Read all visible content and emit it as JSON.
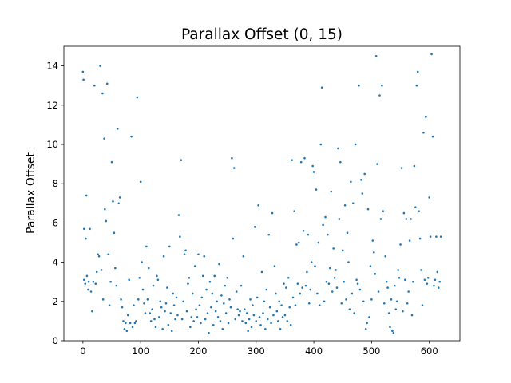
{
  "chart_data": {
    "type": "scatter",
    "title": "Parallax Offset (0, 15)",
    "xlabel": "",
    "ylabel": "Parallax Offset",
    "xlim": [
      -33,
      653
    ],
    "ylim": [
      0,
      15
    ],
    "xticks": [
      0,
      100,
      200,
      300,
      400,
      500,
      600
    ],
    "yticks": [
      0,
      2,
      4,
      6,
      8,
      10,
      12,
      14
    ],
    "grid": false,
    "legend": "none",
    "marker_color": "#1f77b4",
    "series": [
      {
        "points": [
          [
            0,
            13.7
          ],
          [
            1,
            13.3
          ],
          [
            2,
            5.7
          ],
          [
            2,
            3.1
          ],
          [
            4,
            2.9
          ],
          [
            5,
            5.2
          ],
          [
            6,
            7.4
          ],
          [
            7,
            3.3
          ],
          [
            9,
            2.6
          ],
          [
            10,
            3.0
          ],
          [
            12,
            5.7
          ],
          [
            14,
            2.5
          ],
          [
            16,
            1.5
          ],
          [
            18,
            3.0
          ],
          [
            20,
            13.0
          ],
          [
            22,
            2.9
          ],
          [
            24,
            3.5
          ],
          [
            26,
            4.4
          ],
          [
            28,
            4.3
          ],
          [
            30,
            14.0
          ],
          [
            32,
            3.6
          ],
          [
            34,
            12.6
          ],
          [
            35,
            2.1
          ],
          [
            37,
            10.3
          ],
          [
            38,
            6.7
          ],
          [
            40,
            6.1
          ],
          [
            42,
            13.1
          ],
          [
            44,
            4.4
          ],
          [
            46,
            1.8
          ],
          [
            48,
            3.0
          ],
          [
            50,
            9.1
          ],
          [
            52,
            7.1
          ],
          [
            54,
            5.5
          ],
          [
            56,
            3.7
          ],
          [
            58,
            2.8
          ],
          [
            60,
            10.8
          ],
          [
            62,
            7.0
          ],
          [
            64,
            7.3
          ],
          [
            66,
            2.1
          ],
          [
            68,
            1.7
          ],
          [
            70,
            1.0
          ],
          [
            72,
            0.6
          ],
          [
            74,
            0.9
          ],
          [
            76,
            0.5
          ],
          [
            78,
            1.3
          ],
          [
            80,
            3.1
          ],
          [
            82,
            0.9
          ],
          [
            84,
            10.4
          ],
          [
            86,
            0.7
          ],
          [
            88,
            1.8
          ],
          [
            90,
            0.9
          ],
          [
            92,
            1.0
          ],
          [
            94,
            12.4
          ],
          [
            96,
            2.1
          ],
          [
            98,
            3.2
          ],
          [
            100,
            8.1
          ],
          [
            102,
            4.0
          ],
          [
            104,
            2.6
          ],
          [
            106,
            1.9
          ],
          [
            108,
            1.4
          ],
          [
            110,
            4.8
          ],
          [
            112,
            2.1
          ],
          [
            114,
            3.7
          ],
          [
            116,
            1.4
          ],
          [
            118,
            1.0
          ],
          [
            120,
            1.6
          ],
          [
            122,
            2.8
          ],
          [
            124,
            1.1
          ],
          [
            126,
            0.7
          ],
          [
            128,
            3.3
          ],
          [
            130,
            3.1
          ],
          [
            132,
            1.2
          ],
          [
            134,
            2.0
          ],
          [
            136,
            1.7
          ],
          [
            138,
            0.6
          ],
          [
            140,
            4.3
          ],
          [
            142,
            1.5
          ],
          [
            144,
            1.9
          ],
          [
            146,
            2.7
          ],
          [
            148,
            0.8
          ],
          [
            150,
            4.8
          ],
          [
            152,
            1.4
          ],
          [
            154,
            0.5
          ],
          [
            156,
            2.4
          ],
          [
            158,
            1.8
          ],
          [
            160,
            1.1
          ],
          [
            162,
            2.2
          ],
          [
            164,
            1.3
          ],
          [
            166,
            6.4
          ],
          [
            168,
            5.3
          ],
          [
            170,
            9.2
          ],
          [
            172,
            1.1
          ],
          [
            174,
            2.0
          ],
          [
            176,
            4.4
          ],
          [
            178,
            4.6
          ],
          [
            180,
            1.5
          ],
          [
            182,
            2.9
          ],
          [
            184,
            3.2
          ],
          [
            186,
            0.7
          ],
          [
            188,
            1.2
          ],
          [
            190,
            2.4
          ],
          [
            192,
            1.0
          ],
          [
            194,
            3.8
          ],
          [
            196,
            1.6
          ],
          [
            198,
            1.2
          ],
          [
            200,
            4.4
          ],
          [
            202,
            1.8
          ],
          [
            204,
            0.9
          ],
          [
            206,
            2.2
          ],
          [
            208,
            3.3
          ],
          [
            210,
            4.3
          ],
          [
            212,
            1.1
          ],
          [
            214,
            2.6
          ],
          [
            216,
            1.4
          ],
          [
            218,
            0.4
          ],
          [
            220,
            3.0
          ],
          [
            222,
            1.7
          ],
          [
            224,
            2.4
          ],
          [
            226,
            0.8
          ],
          [
            228,
            3.3
          ],
          [
            230,
            1.5
          ],
          [
            232,
            2.0
          ],
          [
            234,
            1.2
          ],
          [
            236,
            3.9
          ],
          [
            238,
            1.0
          ],
          [
            240,
            2.3
          ],
          [
            242,
            0.6
          ],
          [
            244,
            1.9
          ],
          [
            246,
            2.8
          ],
          [
            248,
            1.4
          ],
          [
            250,
            3.2
          ],
          [
            252,
            0.9
          ],
          [
            254,
            2.1
          ],
          [
            256,
            1.7
          ],
          [
            258,
            9.3
          ],
          [
            260,
            5.2
          ],
          [
            262,
            8.8
          ],
          [
            264,
            1.1
          ],
          [
            266,
            2.5
          ],
          [
            268,
            1.6
          ],
          [
            270,
            1.3
          ],
          [
            272,
            1.5
          ],
          [
            274,
            2.8
          ],
          [
            276,
            1.0
          ],
          [
            278,
            4.3
          ],
          [
            280,
            1.6
          ],
          [
            282,
            0.9
          ],
          [
            284,
            1.4
          ],
          [
            286,
            0.5
          ],
          [
            288,
            1.1
          ],
          [
            290,
            2.1
          ],
          [
            292,
            0.7
          ],
          [
            294,
            1.8
          ],
          [
            296,
            1.3
          ],
          [
            298,
            5.8
          ],
          [
            300,
            1.0
          ],
          [
            302,
            2.2
          ],
          [
            304,
            6.9
          ],
          [
            306,
            1.2
          ],
          [
            308,
            0.8
          ],
          [
            310,
            3.5
          ],
          [
            312,
            1.4
          ],
          [
            314,
            2.0
          ],
          [
            316,
            0.6
          ],
          [
            318,
            2.6
          ],
          [
            320,
            1.1
          ],
          [
            322,
            5.4
          ],
          [
            324,
            1.7
          ],
          [
            326,
            0.9
          ],
          [
            328,
            6.5
          ],
          [
            330,
            1.3
          ],
          [
            332,
            3.8
          ],
          [
            334,
            2.4
          ],
          [
            336,
            1.5
          ],
          [
            338,
            1.0
          ],
          [
            340,
            2.0
          ],
          [
            342,
            0.6
          ],
          [
            344,
            1.8
          ],
          [
            346,
            1.2
          ],
          [
            348,
            2.9
          ],
          [
            350,
            1.3
          ],
          [
            352,
            2.7
          ],
          [
            354,
            1.0
          ],
          [
            356,
            3.2
          ],
          [
            358,
            1.7
          ],
          [
            360,
            0.8
          ],
          [
            362,
            9.2
          ],
          [
            364,
            2.2
          ],
          [
            366,
            6.6
          ],
          [
            368,
            1.8
          ],
          [
            370,
            4.9
          ],
          [
            372,
            2.9
          ],
          [
            374,
            5.0
          ],
          [
            376,
            2.4
          ],
          [
            378,
            9.1
          ],
          [
            380,
            2.7
          ],
          [
            382,
            5.6
          ],
          [
            384,
            9.3
          ],
          [
            386,
            2.8
          ],
          [
            388,
            3.5
          ],
          [
            390,
            5.4
          ],
          [
            392,
            1.9
          ],
          [
            394,
            2.6
          ],
          [
            396,
            4.0
          ],
          [
            398,
            8.9
          ],
          [
            400,
            8.6
          ],
          [
            402,
            3.8
          ],
          [
            404,
            7.7
          ],
          [
            406,
            2.4
          ],
          [
            408,
            5.0
          ],
          [
            410,
            1.8
          ],
          [
            412,
            10.0
          ],
          [
            414,
            12.9
          ],
          [
            416,
            5.9
          ],
          [
            418,
            2.0
          ],
          [
            420,
            6.3
          ],
          [
            422,
            3.0
          ],
          [
            424,
            5.4
          ],
          [
            426,
            2.9
          ],
          [
            428,
            3.7
          ],
          [
            430,
            7.6
          ],
          [
            432,
            2.5
          ],
          [
            434,
            4.7
          ],
          [
            436,
            3.2
          ],
          [
            438,
            3.6
          ],
          [
            440,
            2.7
          ],
          [
            442,
            9.8
          ],
          [
            444,
            6.2
          ],
          [
            446,
            9.1
          ],
          [
            448,
            1.9
          ],
          [
            450,
            4.6
          ],
          [
            452,
            3.0
          ],
          [
            454,
            6.9
          ],
          [
            456,
            2.1
          ],
          [
            458,
            5.5
          ],
          [
            460,
            4.0
          ],
          [
            462,
            1.6
          ],
          [
            464,
            8.1
          ],
          [
            466,
            2.4
          ],
          [
            468,
            7.0
          ],
          [
            470,
            1.4
          ],
          [
            472,
            10.0
          ],
          [
            474,
            3.1
          ],
          [
            476,
            2.9
          ],
          [
            478,
            13.0
          ],
          [
            480,
            2.6
          ],
          [
            482,
            8.2
          ],
          [
            484,
            7.5
          ],
          [
            486,
            2.0
          ],
          [
            488,
            8.5
          ],
          [
            490,
            0.6
          ],
          [
            492,
            0.9
          ],
          [
            494,
            6.7
          ],
          [
            496,
            1.2
          ],
          [
            498,
            3.8
          ],
          [
            500,
            2.1
          ],
          [
            502,
            5.1
          ],
          [
            504,
            4.5
          ],
          [
            506,
            3.4
          ],
          [
            508,
            14.5
          ],
          [
            510,
            9.0
          ],
          [
            512,
            2.5
          ],
          [
            514,
            12.5
          ],
          [
            516,
            6.2
          ],
          [
            518,
            13.0
          ],
          [
            520,
            6.6
          ],
          [
            522,
            1.9
          ],
          [
            524,
            4.3
          ],
          [
            526,
            3.0
          ],
          [
            528,
            2.7
          ],
          [
            530,
            1.4
          ],
          [
            532,
            0.7
          ],
          [
            534,
            2.1
          ],
          [
            536,
            0.5
          ],
          [
            538,
            0.4
          ],
          [
            540,
            2.8
          ],
          [
            542,
            1.6
          ],
          [
            544,
            2.0
          ],
          [
            546,
            3.6
          ],
          [
            548,
            3.2
          ],
          [
            550,
            4.9
          ],
          [
            552,
            8.8
          ],
          [
            554,
            1.5
          ],
          [
            556,
            6.5
          ],
          [
            558,
            3.1
          ],
          [
            560,
            6.2
          ],
          [
            562,
            1.9
          ],
          [
            564,
            2.5
          ],
          [
            566,
            5.1
          ],
          [
            568,
            6.2
          ],
          [
            570,
            1.3
          ],
          [
            572,
            3.0
          ],
          [
            574,
            8.9
          ],
          [
            576,
            6.8
          ],
          [
            578,
            13.0
          ],
          [
            580,
            13.7
          ],
          [
            582,
            6.6
          ],
          [
            584,
            5.2
          ],
          [
            586,
            3.6
          ],
          [
            588,
            1.8
          ],
          [
            590,
            10.6
          ],
          [
            592,
            3.1
          ],
          [
            594,
            11.4
          ],
          [
            596,
            2.9
          ],
          [
            598,
            3.2
          ],
          [
            600,
            7.3
          ],
          [
            602,
            5.3
          ],
          [
            604,
            14.6
          ],
          [
            606,
            10.4
          ],
          [
            608,
            2.8
          ],
          [
            610,
            3.1
          ],
          [
            612,
            5.3
          ],
          [
            614,
            3.5
          ],
          [
            616,
            2.7
          ],
          [
            618,
            3.0
          ],
          [
            620,
            5.3
          ]
        ]
      }
    ]
  }
}
